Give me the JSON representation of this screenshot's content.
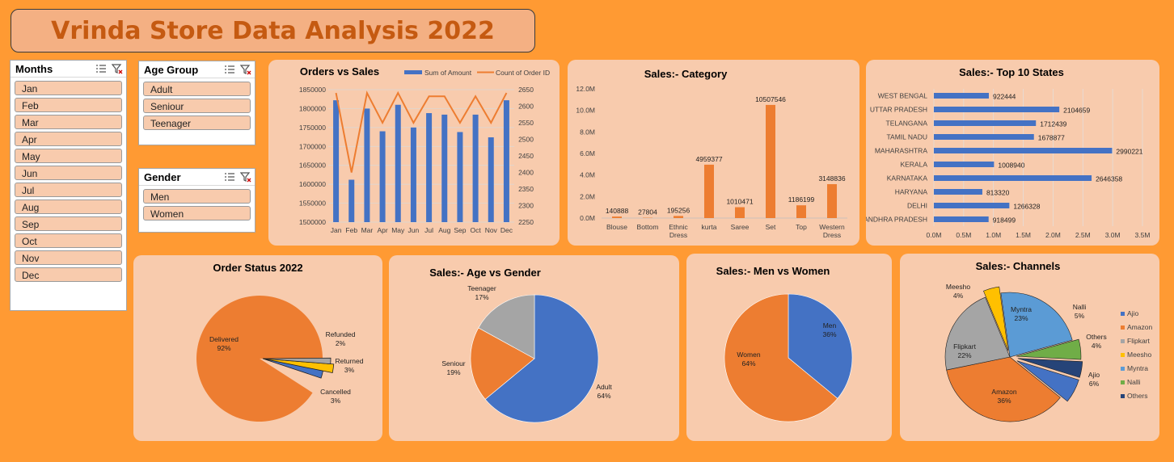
{
  "header": {
    "title": "Vrinda Store Data Analysis 2022"
  },
  "slicers": {
    "months": {
      "label": "Months",
      "items": [
        "Jan",
        "Feb",
        "Mar",
        "Apr",
        "May",
        "Jun",
        "Jul",
        "Aug",
        "Sep",
        "Oct",
        "Nov",
        "Dec"
      ]
    },
    "age_group": {
      "label": "Age Group",
      "items": [
        "Adult",
        "Seniour",
        "Teenager"
      ]
    },
    "gender": {
      "label": "Gender",
      "items": [
        "Men",
        "Women"
      ]
    }
  },
  "colors": {
    "background": "#ff9a33",
    "panel": "#f8cbad",
    "title_text": "#c55a11",
    "blue": "#4472c4",
    "orange": "#ed7d31",
    "gray": "#a5a5a5",
    "yellow": "#ffc000",
    "green": "#70ad47",
    "navy": "#264478",
    "lightblue": "#5b9bd5"
  },
  "chart_data": [
    {
      "id": "orders_vs_sales",
      "type": "bar",
      "title": "Orders vs Sales",
      "categories": [
        "Jan",
        "Feb",
        "Mar",
        "Apr",
        "May",
        "Jun",
        "Jul",
        "Aug",
        "Sep",
        "Oct",
        "Nov",
        "Dec"
      ],
      "series": [
        {
          "name": "Sum of Amount",
          "type": "bar",
          "axis": "left",
          "color": "#4472c4",
          "values": [
            1822000,
            1612000,
            1800000,
            1740000,
            1810000,
            1750000,
            1788000,
            1784000,
            1738000,
            1784000,
            1724000,
            1822000
          ]
        },
        {
          "name": "Count of Order ID",
          "type": "line",
          "axis": "right",
          "color": "#ed7d31",
          "values": [
            2640,
            2400,
            2640,
            2550,
            2640,
            2550,
            2630,
            2630,
            2550,
            2630,
            2550,
            2640
          ]
        }
      ],
      "ylim": [
        1500000,
        1850000
      ],
      "y_ticks": [
        "1500000",
        "1550000",
        "1600000",
        "1650000",
        "1700000",
        "1750000",
        "1800000",
        "1850000"
      ],
      "y2lim": [
        2250,
        2650
      ],
      "y2_ticks": [
        "2250",
        "2300",
        "2350",
        "2400",
        "2450",
        "2500",
        "2550",
        "2600",
        "2650"
      ],
      "legend": "top-right"
    },
    {
      "id": "sales_category",
      "type": "bar",
      "title": "Sales:- Category",
      "categories": [
        "Blouse",
        "Bottom",
        "Ethnic Dress",
        "kurta",
        "Saree",
        "Set",
        "Top",
        "Western Dress"
      ],
      "category_lines": [
        [
          "Blouse"
        ],
        [
          "Bottom"
        ],
        [
          "Ethnic",
          "Dress"
        ],
        [
          "kurta"
        ],
        [
          "Saree"
        ],
        [
          "Set"
        ],
        [
          "Top"
        ],
        [
          "Western",
          "Dress"
        ]
      ],
      "values": [
        140888,
        27804,
        195256,
        4959377,
        1010471,
        10507546,
        1186199,
        3148836
      ],
      "labels": [
        "140888",
        "27804",
        "195256",
        "4959377",
        "1010471",
        "10507546",
        "1186199",
        "3148836"
      ],
      "color": "#ed7d31",
      "ylim": [
        0,
        12000000
      ],
      "y_ticks": [
        "0.0M",
        "2.0M",
        "4.0M",
        "6.0M",
        "8.0M",
        "10.0M",
        "12.0M"
      ]
    },
    {
      "id": "top10_states",
      "type": "bar",
      "orientation": "horizontal",
      "title": "Sales:- Top 10 States",
      "categories": [
        "WEST BENGAL",
        "UTTAR PRADESH",
        "TELANGANA",
        "TAMIL NADU",
        "MAHARASHTRA",
        "KERALA",
        "KARNATAKA",
        "HARYANA",
        "DELHI",
        "ANDHRA PRADESH"
      ],
      "values": [
        922444,
        2104659,
        1712439,
        1678877,
        2990221,
        1008940,
        2646358,
        813320,
        1266328,
        918499
      ],
      "labels": [
        "922444",
        "2104659",
        "1712439",
        "1678877",
        "2990221",
        "1008940",
        "2646358",
        "813320",
        "1266328",
        "918499"
      ],
      "color": "#4472c4",
      "xlim": [
        0,
        3500000
      ],
      "x_ticks": [
        "0.0M",
        "0.5M",
        "1.0M",
        "1.5M",
        "2.0M",
        "2.5M",
        "3.0M",
        "3.5M"
      ]
    },
    {
      "id": "order_status",
      "type": "pie",
      "title": "Order Status 2022",
      "slices": [
        {
          "name": "Delivered",
          "value": 92,
          "label": "92%",
          "color": "#ed7d31"
        },
        {
          "name": "Cancelled",
          "value": 3,
          "label": "3%",
          "color": "#4472c4"
        },
        {
          "name": "Returned",
          "value": 3,
          "label": "3%",
          "color": "#ffc000"
        },
        {
          "name": "Refunded",
          "value": 2,
          "label": "2%",
          "color": "#a5a5a5"
        }
      ]
    },
    {
      "id": "age_vs_gender",
      "type": "pie",
      "title": "Sales:- Age vs Gender",
      "slices": [
        {
          "name": "Adult",
          "value": 64,
          "label": "64%",
          "color": "#4472c4"
        },
        {
          "name": "Seniour",
          "value": 19,
          "label": "19%",
          "color": "#ed7d31"
        },
        {
          "name": "Teenager",
          "value": 17,
          "label": "17%",
          "color": "#a5a5a5"
        }
      ]
    },
    {
      "id": "men_vs_women",
      "type": "pie",
      "title": "Sales:- Men vs Women",
      "slices": [
        {
          "name": "Men",
          "value": 36,
          "label": "36%",
          "color": "#4472c4"
        },
        {
          "name": "Women",
          "value": 64,
          "label": "64%",
          "color": "#ed7d31"
        }
      ]
    },
    {
      "id": "channels",
      "type": "pie",
      "title": "Sales:- Channels",
      "slices": [
        {
          "name": "Ajio",
          "value": 6,
          "label": "6%",
          "color": "#4472c4",
          "exploded": true
        },
        {
          "name": "Amazon",
          "value": 36,
          "label": "36%",
          "color": "#ed7d31"
        },
        {
          "name": "Flipkart",
          "value": 22,
          "label": "22%",
          "color": "#a5a5a5"
        },
        {
          "name": "Meesho",
          "value": 4,
          "label": "4%",
          "color": "#ffc000",
          "exploded": true
        },
        {
          "name": "Myntra",
          "value": 23,
          "label": "23%",
          "color": "#5b9bd5"
        },
        {
          "name": "Nalli",
          "value": 5,
          "label": "5%",
          "color": "#70ad47",
          "exploded": true
        },
        {
          "name": "Others",
          "value": 4,
          "label": "4%",
          "color": "#264478",
          "exploded": true
        }
      ],
      "legend": "right"
    }
  ]
}
